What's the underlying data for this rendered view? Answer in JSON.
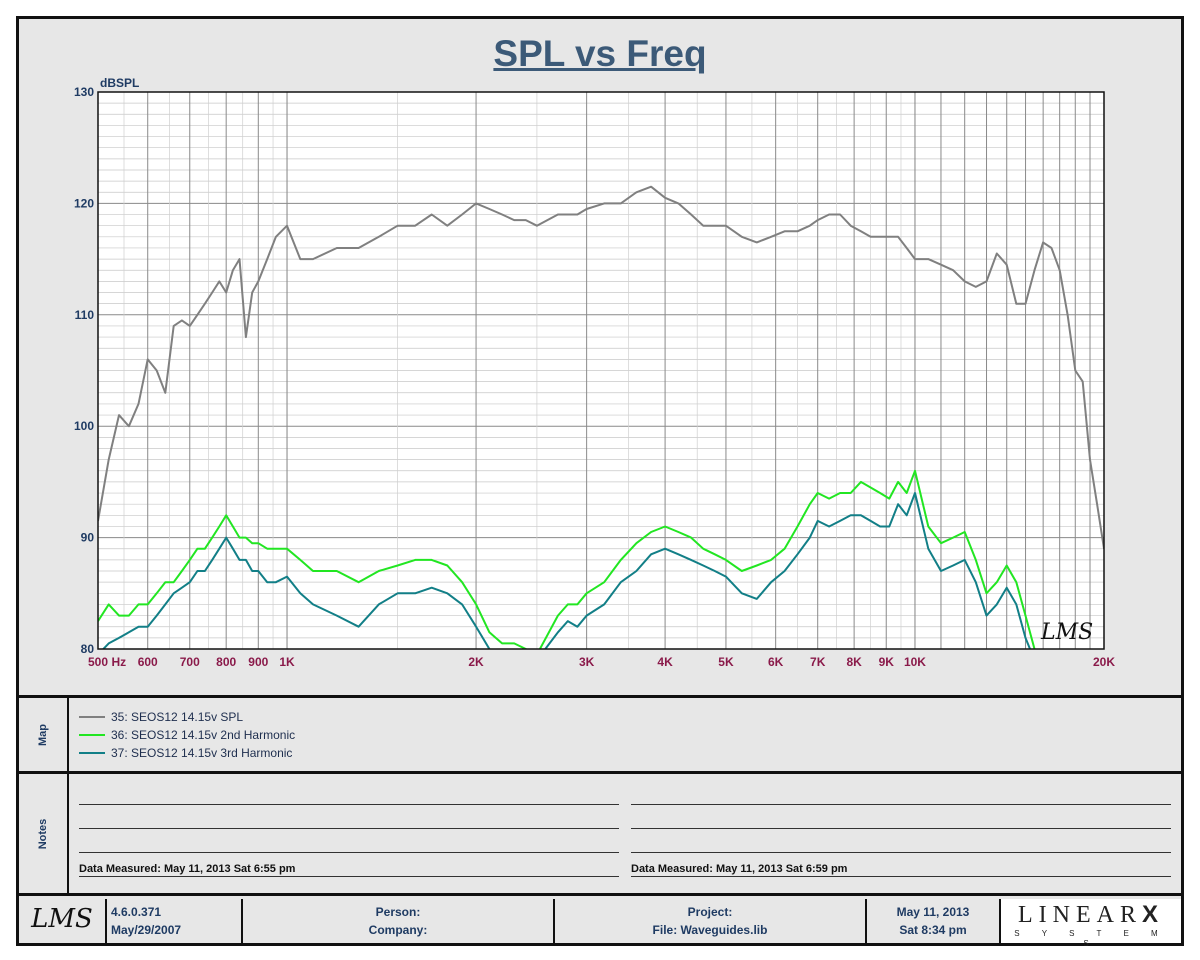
{
  "chart_data": {
    "type": "line",
    "title": "SPL vs Freq",
    "ylabel": "dBSPL",
    "xlabel": "Hz",
    "x_scale": "log",
    "xlim": [
      500,
      20000
    ],
    "ylim": [
      80,
      130
    ],
    "grid": true,
    "y_ticks": [
      80,
      90,
      100,
      110,
      120,
      130
    ],
    "x_tick_labels": [
      {
        "v": 500,
        "t": "500"
      },
      {
        "v": 600,
        "t": "600"
      },
      {
        "v": 700,
        "t": "700"
      },
      {
        "v": 800,
        "t": "800"
      },
      {
        "v": 900,
        "t": "900"
      },
      {
        "v": 1000,
        "t": "1K"
      },
      {
        "v": 2000,
        "t": "2K"
      },
      {
        "v": 3000,
        "t": "3K"
      },
      {
        "v": 4000,
        "t": "4K"
      },
      {
        "v": 5000,
        "t": "5K"
      },
      {
        "v": 6000,
        "t": "6K"
      },
      {
        "v": 7000,
        "t": "7K"
      },
      {
        "v": 8000,
        "t": "8K"
      },
      {
        "v": 9000,
        "t": "9K"
      },
      {
        "v": 10000,
        "t": "10K"
      },
      {
        "v": 20000,
        "t": "20K"
      }
    ],
    "series": [
      {
        "name": "35: SEOS12 14.15v SPL",
        "color": "#808080",
        "x": [
          500,
          520,
          540,
          560,
          580,
          600,
          620,
          640,
          660,
          680,
          700,
          720,
          740,
          760,
          780,
          800,
          820,
          840,
          860,
          880,
          900,
          930,
          960,
          1000,
          1050,
          1100,
          1200,
          1300,
          1400,
          1500,
          1600,
          1700,
          1800,
          1900,
          2000,
          2100,
          2200,
          2300,
          2400,
          2500,
          2700,
          2800,
          2900,
          3000,
          3200,
          3400,
          3600,
          3800,
          4000,
          4200,
          4400,
          4600,
          4800,
          5000,
          5300,
          5600,
          5900,
          6200,
          6500,
          6800,
          7000,
          7300,
          7600,
          7900,
          8200,
          8500,
          8800,
          9100,
          9400,
          9700,
          10000,
          10500,
          11000,
          11500,
          12000,
          12500,
          13000,
          13500,
          14000,
          14500,
          15000,
          15500,
          16000,
          16500,
          17000,
          17500,
          18000,
          18500,
          19000,
          19500,
          20000
        ],
        "values": [
          91.5,
          97,
          101,
          100,
          102,
          106,
          105,
          103,
          109,
          109.5,
          109,
          110,
          111,
          112,
          113,
          112,
          114,
          115,
          108,
          112,
          113,
          115,
          117,
          118,
          115,
          115,
          116,
          116,
          117,
          118,
          118,
          119,
          118,
          119,
          120,
          119.5,
          119,
          118.5,
          118.5,
          118,
          119,
          119,
          119,
          119.5,
          120,
          120,
          121,
          121.5,
          120.5,
          120,
          119,
          118,
          118,
          118,
          117,
          116.5,
          117,
          117.5,
          117.5,
          118,
          118.5,
          119,
          119,
          118,
          117.5,
          117,
          117,
          117,
          117,
          116,
          115,
          115,
          114.5,
          114,
          113,
          112.5,
          113,
          115.5,
          114.5,
          111,
          111,
          114,
          116.5,
          116,
          114,
          110,
          105,
          104,
          97,
          93,
          89
        ]
      },
      {
        "name": "36: SEOS12 14.15v 2nd Harmonic",
        "color": "#22e622",
        "x": [
          500,
          520,
          540,
          560,
          580,
          600,
          620,
          640,
          660,
          680,
          700,
          720,
          740,
          760,
          780,
          800,
          820,
          840,
          860,
          880,
          900,
          930,
          960,
          1000,
          1050,
          1100,
          1200,
          1300,
          1400,
          1500,
          1600,
          1700,
          1800,
          1900,
          2000,
          2100,
          2200,
          2300,
          2400,
          2500,
          2700,
          2800,
          2900,
          3000,
          3200,
          3400,
          3600,
          3800,
          4000,
          4200,
          4400,
          4600,
          4800,
          5000,
          5300,
          5600,
          5900,
          6200,
          6500,
          6800,
          7000,
          7300,
          7600,
          7900,
          8200,
          8500,
          8800,
          9100,
          9400,
          9700,
          10000,
          10500,
          11000,
          11500,
          12000,
          12500,
          13000,
          13500,
          14000,
          14500,
          15000,
          15500,
          16000,
          16500,
          17000,
          17500,
          18000,
          18500,
          19000,
          19500,
          20000
        ],
        "values": [
          82.5,
          84,
          83,
          83,
          84,
          84,
          85,
          86,
          86,
          87,
          88,
          89,
          89,
          90,
          91,
          92,
          91,
          90,
          90,
          89.5,
          89.5,
          89,
          89,
          89,
          88,
          87,
          87,
          86,
          87,
          87.5,
          88,
          88,
          87.5,
          86,
          84,
          81.5,
          80.5,
          80.5,
          80,
          79.5,
          83,
          84,
          84,
          85,
          86,
          88,
          89.5,
          90.5,
          91,
          90.5,
          90,
          89,
          88.5,
          88,
          87,
          87.5,
          88,
          89,
          91,
          93,
          94,
          93.5,
          94,
          94,
          95,
          94.5,
          94,
          93.5,
          95,
          94,
          96,
          91,
          89.5,
          90,
          90.5,
          88,
          85,
          86,
          87.5,
          86,
          83,
          80,
          79.5,
          78,
          78,
          78,
          78,
          78,
          78,
          78,
          78
        ]
      },
      {
        "name": "37: SEOS12 14.15v 3rd Harmonic",
        "color": "#127f87",
        "x": [
          500,
          520,
          540,
          560,
          580,
          600,
          620,
          640,
          660,
          680,
          700,
          720,
          740,
          760,
          780,
          800,
          820,
          840,
          860,
          880,
          900,
          930,
          960,
          1000,
          1050,
          1100,
          1200,
          1300,
          1400,
          1500,
          1600,
          1700,
          1800,
          1900,
          2000,
          2100,
          2200,
          2300,
          2400,
          2500,
          2700,
          2800,
          2900,
          3000,
          3200,
          3400,
          3600,
          3800,
          4000,
          4200,
          4400,
          4600,
          4800,
          5000,
          5300,
          5600,
          5900,
          6200,
          6500,
          6800,
          7000,
          7300,
          7600,
          7900,
          8200,
          8500,
          8800,
          9100,
          9400,
          9700,
          10000,
          10500,
          11000,
          11500,
          12000,
          12500,
          13000,
          13500,
          14000,
          14500,
          15000,
          15500,
          16000,
          16500,
          17000,
          17500,
          18000,
          18500,
          19000,
          19500,
          20000
        ],
        "values": [
          79.5,
          80.5,
          81,
          81.5,
          82,
          82,
          83,
          84,
          85,
          85.5,
          86,
          87,
          87,
          88,
          89,
          90,
          89,
          88,
          88,
          87,
          87,
          86,
          86,
          86.5,
          85,
          84,
          83,
          82,
          84,
          85,
          85,
          85.5,
          85,
          84,
          82,
          80,
          79.5,
          79,
          79,
          79,
          81.5,
          82.5,
          82,
          83,
          84,
          86,
          87,
          88.5,
          89,
          88.5,
          88,
          87.5,
          87,
          86.5,
          85,
          84.5,
          86,
          87,
          88.5,
          90,
          91.5,
          91,
          91.5,
          92,
          92,
          91.5,
          91,
          91,
          93,
          92,
          94,
          89,
          87,
          87.5,
          88,
          86,
          83,
          84,
          85.5,
          84,
          81,
          79,
          78,
          77,
          77,
          77,
          77,
          77,
          77,
          77,
          77
        ]
      }
    ]
  },
  "map": {
    "label": "Map",
    "items": [
      {
        "text": "35: SEOS12 14.15v SPL",
        "color": "#808080"
      },
      {
        "text": "36: SEOS12 14.15v 2nd Harmonic",
        "color": "#22e622"
      },
      {
        "text": "37: SEOS12 14.15v 3rd Harmonic",
        "color": "#127f87"
      }
    ]
  },
  "notes": {
    "label": "Notes",
    "left_measured": "Data Measured: May 11, 2013  Sat  6:55 pm",
    "right_measured": "Data Measured: May 11, 2013  Sat  6:59 pm"
  },
  "watermark": "LMS",
  "footer": {
    "logo": "LMS",
    "version": "4.6.0.371",
    "version_date": "May/29/2007",
    "person_label": "Person:",
    "company_label": "Company:",
    "project_label": "Project:",
    "file_label": "File: Waveguides.lib",
    "date": "May 11, 2013",
    "time": "Sat  8:34 pm",
    "brand": "LINEAR",
    "brand_x": "X",
    "brand_sub": "S Y S T E M S"
  }
}
